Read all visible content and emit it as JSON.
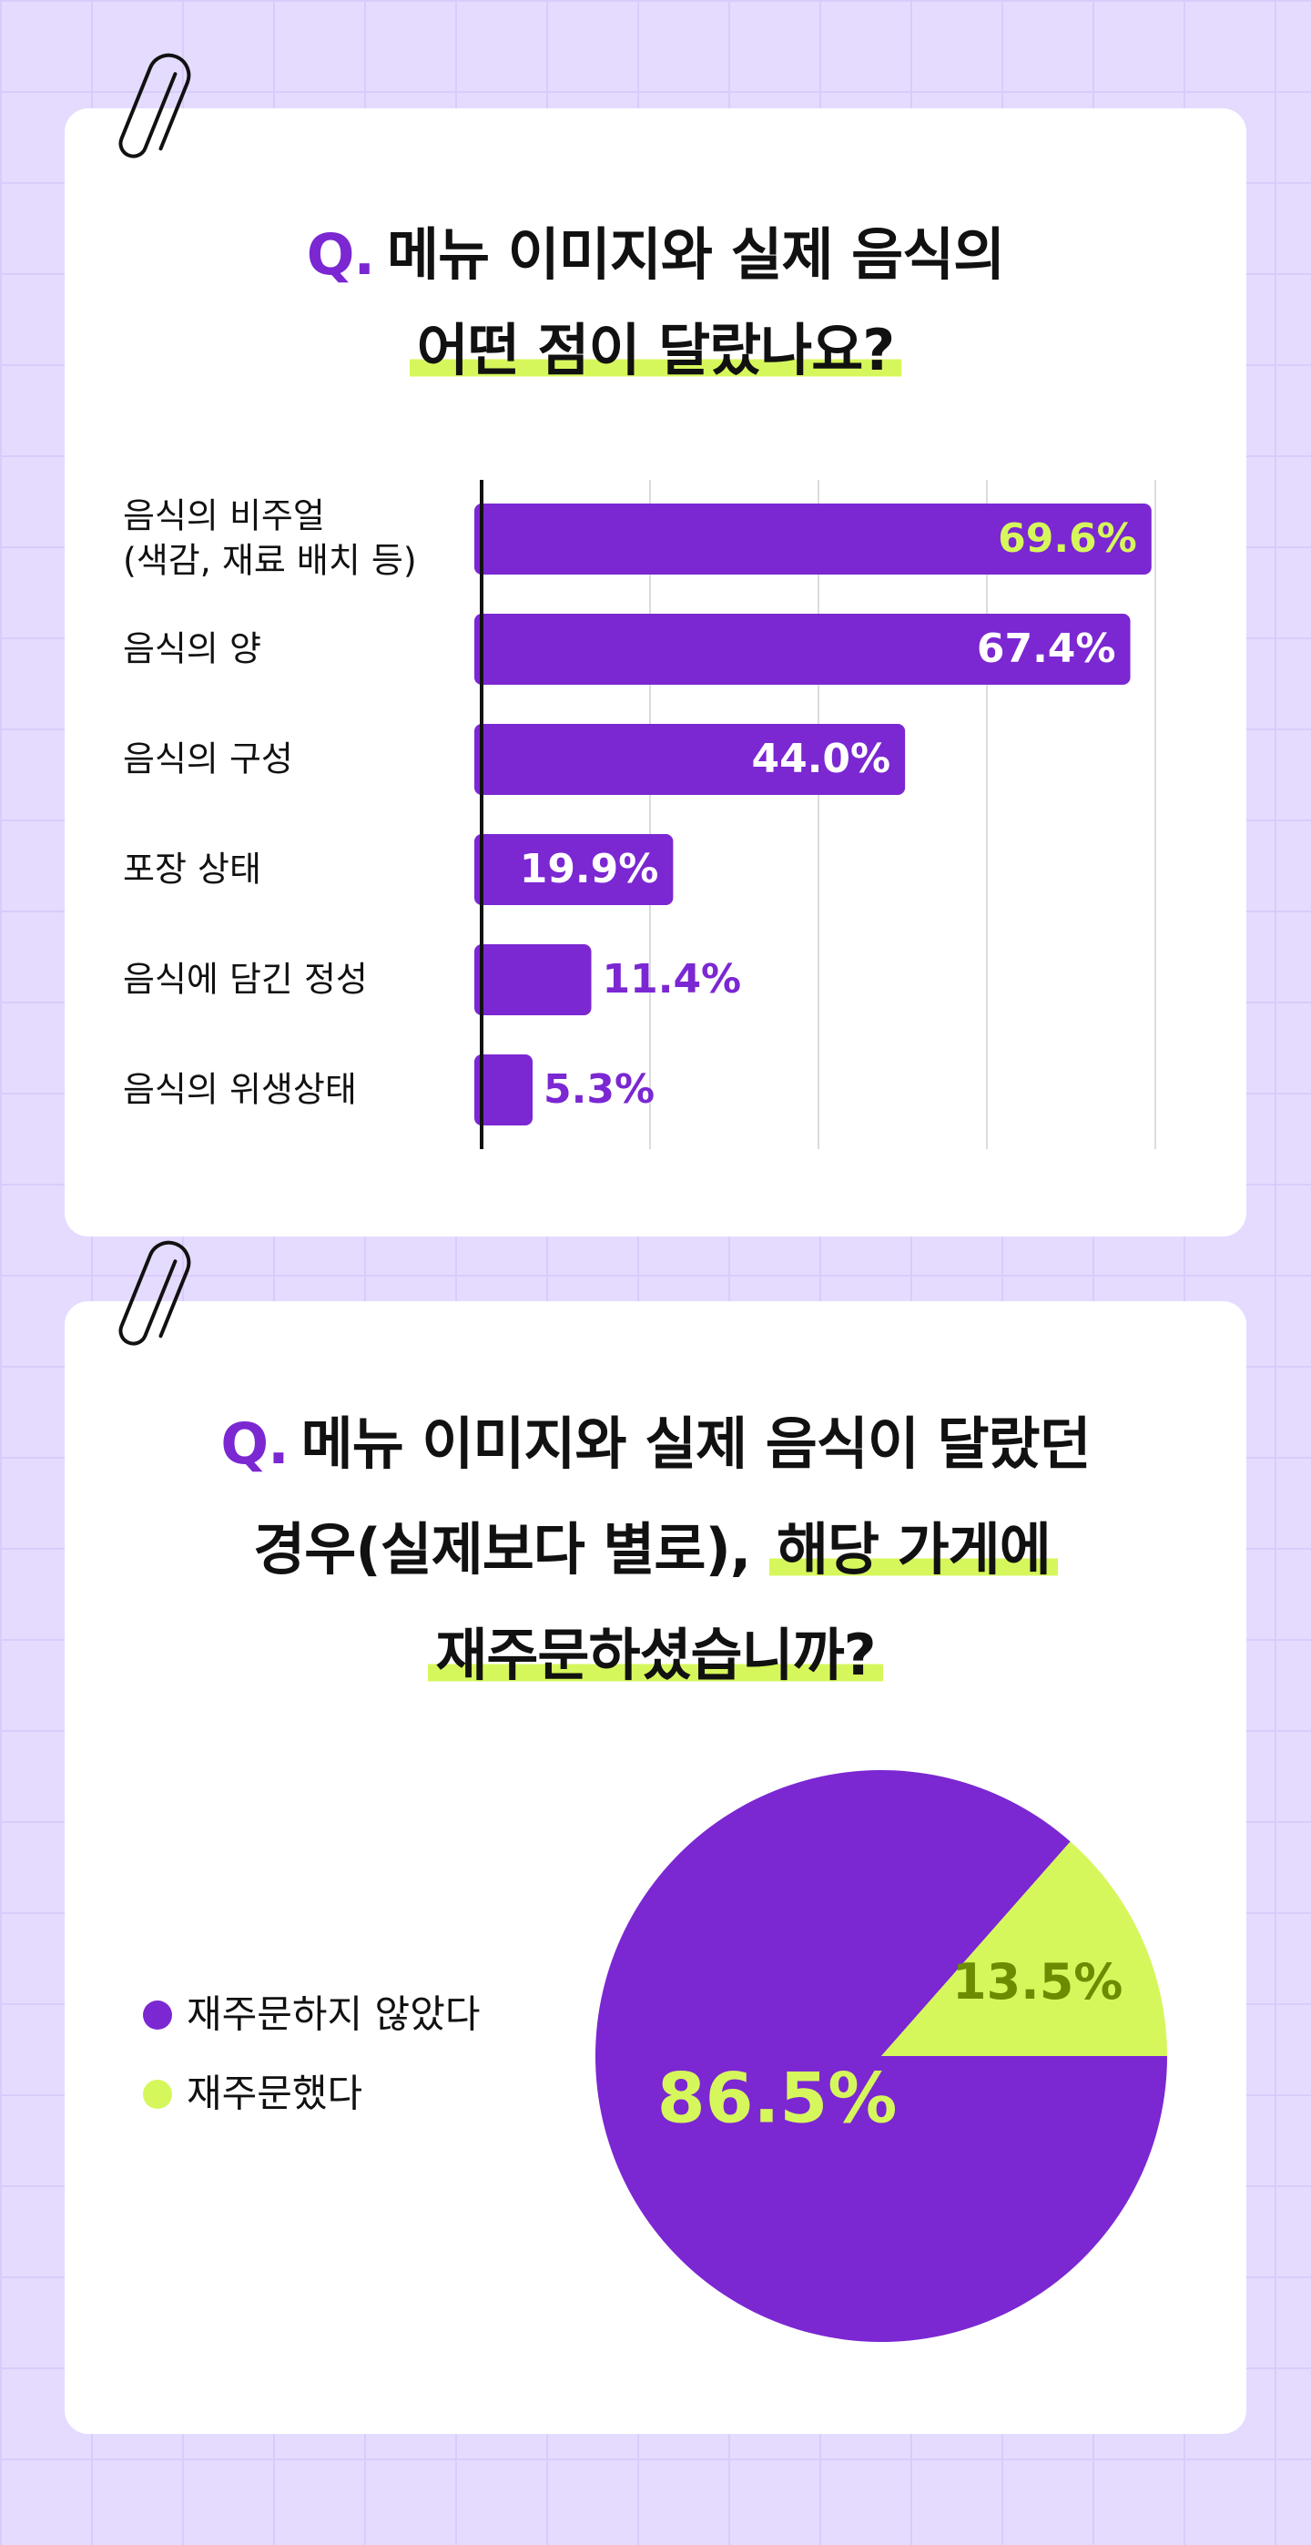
{
  "chart_data": [
    {
      "type": "bar",
      "orientation": "horizontal",
      "title_marker": "Q.",
      "title": [
        "메뉴 이미지와 실제 음식의",
        "어떤 점이 달랐나요?"
      ],
      "categories": [
        "음식의 비주얼\n(색감, 재료 배치 등)",
        "음식의 양",
        "음식의 구성",
        "포장 상태",
        "음식에 담긴 정성",
        "음식의 위생상태"
      ],
      "values": [
        69.6,
        67.4,
        44.0,
        19.9,
        11.4,
        5.3
      ],
      "value_labels": [
        "69.6%",
        "67.4%",
        "44.0%",
        "19.9%",
        "11.4%",
        "5.3%"
      ],
      "color": "#7b27d2",
      "label_color": "#ffffff",
      "highlight": 0,
      "highlight_label_color": "#d6f75c",
      "xlim": [
        0,
        70
      ],
      "gridlines": [
        17.5,
        35,
        52.5,
        70
      ]
    },
    {
      "type": "pie",
      "title_marker": "Q.",
      "title": [
        "메뉴 이미지와 실제 음식이 달랐던",
        "경우(실제보다 별로),",
        "해당 가게에",
        "재주문하셨습니까?"
      ],
      "categories": [
        "재주문하지 않았다",
        "재주문했다"
      ],
      "values": [
        86.5,
        13.5
      ],
      "value_labels": [
        "86.5%",
        "13.5%"
      ],
      "colors": [
        "#7b27d2",
        "#d6f75c"
      ],
      "label_colors": [
        "#d6f75c",
        "#6b8c00"
      ],
      "legend": "left"
    }
  ]
}
